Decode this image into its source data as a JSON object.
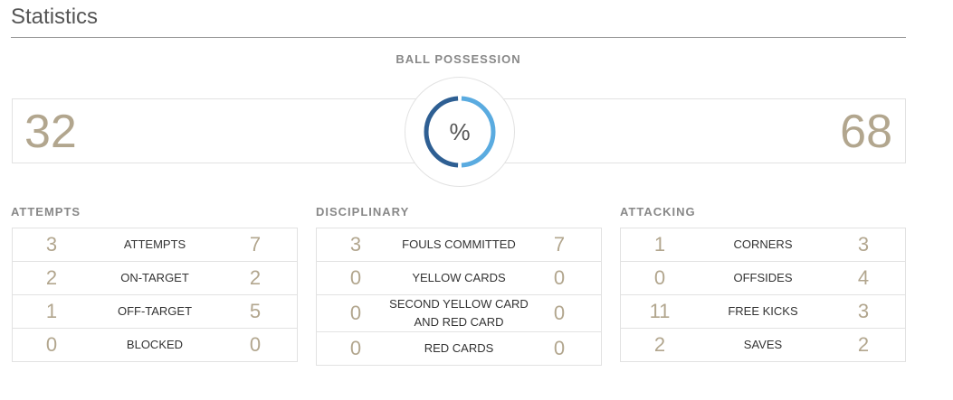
{
  "page": {
    "title": "Statistics"
  },
  "possession": {
    "label": "BALL POSSESSION",
    "home": 32,
    "away": 68,
    "center_symbol": "%",
    "colors": {
      "home": "#2e5f93",
      "away": "#5aabe0",
      "track": "#ffffff"
    }
  },
  "sections": [
    {
      "title": "ATTEMPTS",
      "rows": [
        {
          "home": "3",
          "label": "ATTEMPTS",
          "away": "7"
        },
        {
          "home": "2",
          "label": "ON-TARGET",
          "away": "2"
        },
        {
          "home": "1",
          "label": "OFF-TARGET",
          "away": "5"
        },
        {
          "home": "0",
          "label": "BLOCKED",
          "away": "0"
        }
      ]
    },
    {
      "title": "DISCIPLINARY",
      "rows": [
        {
          "home": "3",
          "label": "FOULS COMMITTED",
          "away": "7"
        },
        {
          "home": "0",
          "label": "YELLOW CARDS",
          "away": "0"
        },
        {
          "home": "0",
          "label": "SECOND YELLOW CARD AND RED CARD",
          "away": "0"
        },
        {
          "home": "0",
          "label": "RED CARDS",
          "away": "0"
        }
      ]
    },
    {
      "title": "ATTACKING",
      "rows": [
        {
          "home": "1",
          "label": "CORNERS",
          "away": "3"
        },
        {
          "home": "0",
          "label": "OFFSIDES",
          "away": "4"
        },
        {
          "home": "11",
          "label": "FREE KICKS",
          "away": "3"
        },
        {
          "home": "2",
          "label": "SAVES",
          "away": "2"
        }
      ]
    }
  ],
  "colors": {
    "value": "#b2a68e",
    "border": "#e2e2e2",
    "section_title": "#888888"
  }
}
